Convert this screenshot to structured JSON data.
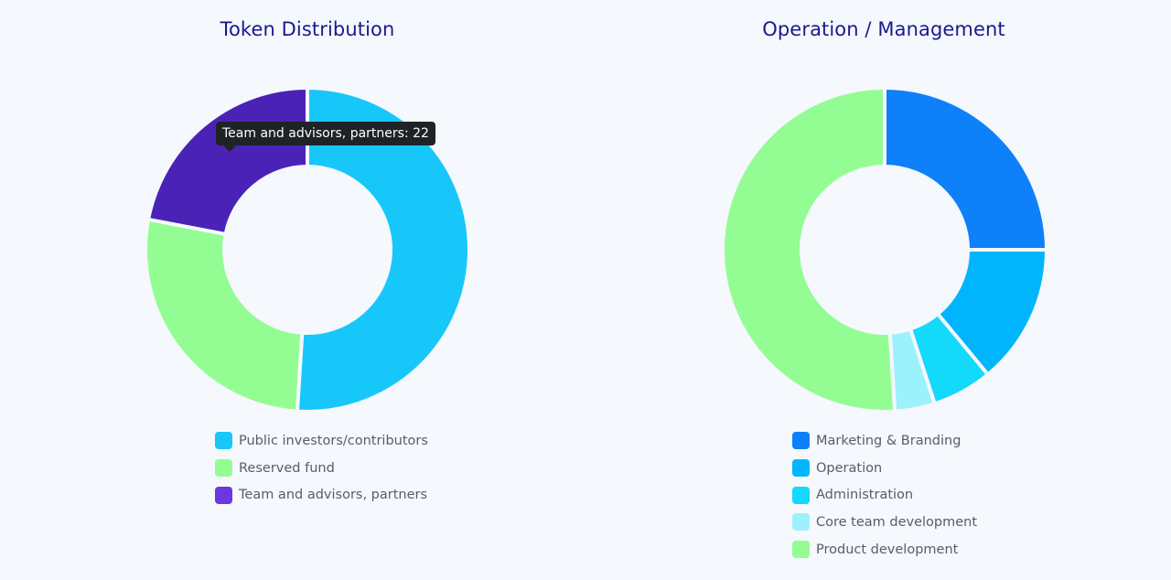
{
  "chart_data": [
    {
      "type": "pie",
      "title": "Token Distribution",
      "donut": true,
      "legend_placement": "bottom",
      "slices": [
        {
          "label": "Public investors/contributors",
          "value": 51,
          "color": "#18c7fa",
          "legend_color": "#18c7fa"
        },
        {
          "label": "Reserved fund",
          "value": 27,
          "color": "#93fd93",
          "legend_color": "#93fd93"
        },
        {
          "label": "Team and advisors, partners",
          "value": 22,
          "color": "#4a23b6",
          "legend_color": "#6a38dc"
        }
      ],
      "tooltip": {
        "label": "Team and advisors, partners",
        "value": 22
      }
    },
    {
      "type": "pie",
      "title": "Operation / Management",
      "donut": true,
      "legend_placement": "bottom",
      "slices": [
        {
          "label": "Marketing & Branding",
          "value": 25,
          "color": "#0d80fa",
          "legend_color": "#0d80fa"
        },
        {
          "label": "Operation",
          "value": 14,
          "color": "#00b5fc",
          "legend_color": "#00b5fc"
        },
        {
          "label": "Administration",
          "value": 6,
          "color": "#13d9fb",
          "legend_color": "#13d9fb"
        },
        {
          "label": "Core team development",
          "value": 4,
          "color": "#9bf2fd",
          "legend_color": "#9bf2fd"
        },
        {
          "label": "Product development",
          "value": 51,
          "color": "#93fd93",
          "legend_color": "#93fd93"
        }
      ]
    }
  ]
}
